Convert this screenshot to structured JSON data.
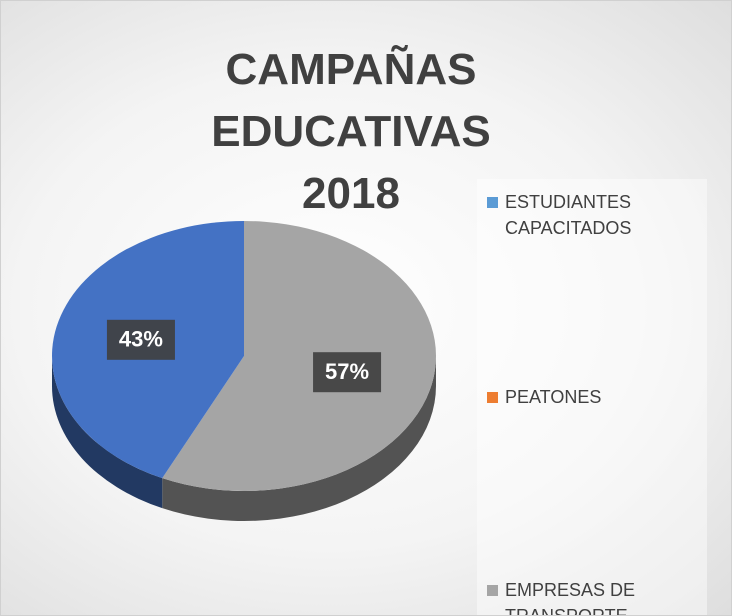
{
  "chart_data": {
    "type": "pie",
    "title": "CAMPAÑAS EDUCATIVAS 2018",
    "categories": [
      "ESTUDIANTES CAPACITADOS",
      "PEATONES",
      "EMPRESAS DE TRANSPORTE,"
    ],
    "values": [
      43,
      0,
      57
    ],
    "value_labels": [
      "43%",
      null,
      "57%"
    ],
    "colors": [
      "#4472c4",
      "#ed7d31",
      "#a5a5a5"
    ],
    "legend_colors": [
      "#5b9bd5",
      "#ed7d31",
      "#a5a5a5"
    ],
    "legend": "right"
  }
}
